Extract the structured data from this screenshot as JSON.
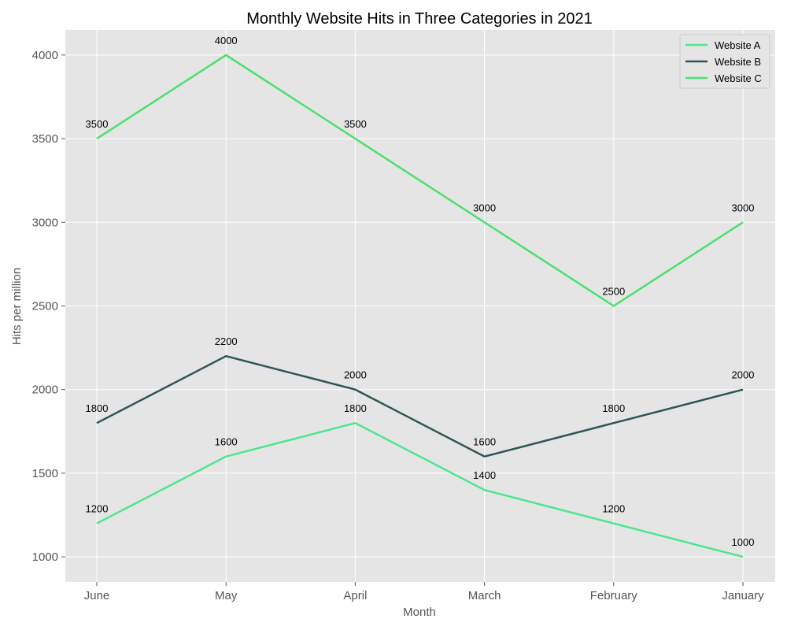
{
  "chart_data": {
    "type": "line",
    "title": "Monthly Website Hits in Three Categories in 2021",
    "xlabel": "Month",
    "ylabel": "Hits per million",
    "categories": [
      "June",
      "May",
      "April",
      "March",
      "February",
      "January"
    ],
    "yticks": [
      1000,
      1500,
      2000,
      2500,
      3000,
      3500,
      4000
    ],
    "ylim": [
      850,
      4150
    ],
    "grid": true,
    "legend": "top-right",
    "series": [
      {
        "name": "Website A",
        "color": "#4ee68f",
        "values": [
          1200,
          1600,
          1800,
          1400,
          1200,
          1000
        ]
      },
      {
        "name": "Website B",
        "color": "#2f5556",
        "values": [
          1800,
          2200,
          2000,
          1600,
          1800,
          2000
        ]
      },
      {
        "name": "Website C",
        "color": "#4be170",
        "values": [
          3500,
          4000,
          3500,
          3000,
          2500,
          3000
        ]
      }
    ],
    "background": "#e5e5e5"
  }
}
